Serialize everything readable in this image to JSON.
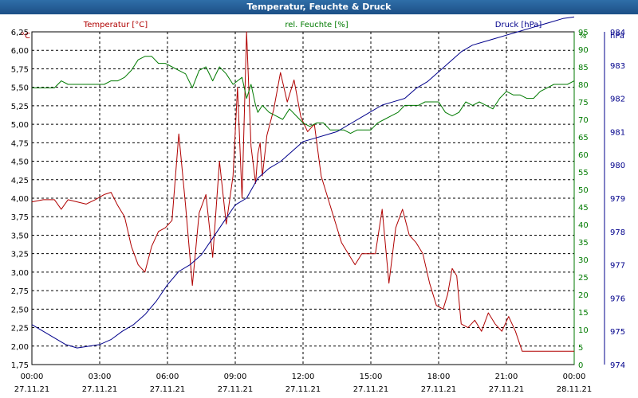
{
  "window": {
    "title": "Temperatur, Feuchte & Druck"
  },
  "chart_data": {
    "type": "line",
    "title": "Temperatur, Feuchte & Druck",
    "grid": true,
    "x_range": [
      "27.11.21 00:00",
      "28.11.21 00:00"
    ],
    "x_ticks": [
      {
        "time": "00:00",
        "date": "27.11.21"
      },
      {
        "time": "03:00",
        "date": "27.11.21"
      },
      {
        "time": "06:00",
        "date": "27.11.21"
      },
      {
        "time": "09:00",
        "date": "27.11.21"
      },
      {
        "time": "12:00",
        "date": "27.11.21"
      },
      {
        "time": "15:00",
        "date": "27.11.21"
      },
      {
        "time": "18:00",
        "date": "27.11.21"
      },
      {
        "time": "21:00",
        "date": "27.11.21"
      },
      {
        "time": "00:00",
        "date": "28.11.21"
      }
    ],
    "axes": {
      "temp": {
        "unit": "°C",
        "label": "Temperatur [°C]",
        "color": "#b00000",
        "min": 1.75,
        "max": 6.25,
        "ticks": [
          "1,75",
          "2,00",
          "2,25",
          "2,50",
          "2,75",
          "3,00",
          "3,25",
          "3,50",
          "3,75",
          "4,00",
          "4,25",
          "4,50",
          "4,75",
          "5,00",
          "5,25",
          "5,50",
          "5,75",
          "6,00",
          "6,25"
        ]
      },
      "humidity": {
        "unit": "%",
        "label": "rel. Feuchte [%]",
        "color": "#007a00",
        "min": 0,
        "max": 95,
        "ticks": [
          "0",
          "5",
          "10",
          "15",
          "20",
          "25",
          "30",
          "35",
          "40",
          "45",
          "50",
          "55",
          "60",
          "65",
          "70",
          "75",
          "80",
          "85",
          "90",
          "95"
        ]
      },
      "pressure": {
        "unit": "hPa",
        "label": "Druck [hPa]",
        "color": "#00008b",
        "min": 974,
        "max": 984,
        "ticks": [
          "974",
          "975",
          "976",
          "977",
          "978",
          "979",
          "980",
          "981",
          "982",
          "983",
          "984"
        ]
      }
    },
    "series": [
      {
        "name": "Temperatur [°C]",
        "axis": "temp",
        "color": "#b00000",
        "x": [
          0,
          0.5,
          1,
          1.3,
          1.6,
          2,
          2.4,
          2.8,
          3.2,
          3.5,
          3.8,
          4.1,
          4.4,
          4.7,
          5.0,
          5.3,
          5.6,
          5.9,
          6.2,
          6.5,
          6.8,
          7.1,
          7.4,
          7.7,
          8.0,
          8.3,
          8.6,
          8.9,
          9.1,
          9.3,
          9.5,
          9.7,
          9.9,
          10.0,
          10.1,
          10.2,
          10.4,
          10.7,
          11.0,
          11.3,
          11.6,
          11.9,
          12.2,
          12.5,
          12.8,
          13.1,
          13.4,
          13.7,
          14.0,
          14.3,
          14.6,
          14.9,
          15.2,
          15.5,
          15.8,
          16.1,
          16.4,
          16.7,
          17.0,
          17.3,
          17.6,
          17.9,
          18.2,
          18.4,
          18.6,
          18.8,
          19.0,
          19.3,
          19.6,
          19.9,
          20.2,
          20.5,
          20.8,
          21.1,
          21.4,
          21.7,
          22.0,
          22.3,
          22.6,
          22.9,
          23.2,
          23.5,
          23.8,
          24.0
        ],
        "y": [
          3.95,
          3.98,
          3.98,
          3.85,
          3.98,
          3.95,
          3.92,
          3.98,
          4.05,
          4.08,
          3.9,
          3.75,
          3.35,
          3.1,
          3.0,
          3.35,
          3.55,
          3.6,
          3.7,
          4.87,
          3.9,
          2.82,
          3.8,
          4.05,
          3.2,
          4.5,
          3.65,
          4.3,
          5.5,
          4.0,
          6.25,
          4.7,
          4.2,
          4.6,
          4.75,
          4.3,
          4.85,
          5.2,
          5.7,
          5.3,
          5.6,
          5.1,
          4.9,
          5.0,
          4.3,
          4.0,
          3.7,
          3.4,
          3.25,
          3.1,
          3.25,
          3.25,
          3.25,
          3.85,
          2.85,
          3.6,
          3.85,
          3.5,
          3.4,
          3.25,
          2.85,
          2.55,
          2.5,
          2.7,
          3.05,
          2.95,
          2.3,
          2.25,
          2.35,
          2.2,
          2.45,
          2.3,
          2.2,
          2.4,
          2.2,
          1.93,
          1.93,
          1.93,
          1.93,
          1.93,
          1.93,
          1.93,
          1.93,
          1.93
        ]
      },
      {
        "name": "rel. Feuchte [%]",
        "axis": "humidity",
        "color": "#007a00",
        "x": [
          0,
          0.5,
          1,
          1.3,
          1.6,
          2,
          2.4,
          2.8,
          3.2,
          3.5,
          3.8,
          4.1,
          4.4,
          4.7,
          5.0,
          5.3,
          5.6,
          5.9,
          6.2,
          6.5,
          6.8,
          7.1,
          7.4,
          7.7,
          8.0,
          8.3,
          8.6,
          8.9,
          9.1,
          9.3,
          9.5,
          9.7,
          9.9,
          10.0,
          10.2,
          10.5,
          10.8,
          11.1,
          11.4,
          11.7,
          12.0,
          12.3,
          12.6,
          12.9,
          13.2,
          13.5,
          13.8,
          14.1,
          14.4,
          14.7,
          15.0,
          15.3,
          15.6,
          15.9,
          16.2,
          16.5,
          16.8,
          17.1,
          17.4,
          17.7,
          18.0,
          18.3,
          18.6,
          18.9,
          19.2,
          19.5,
          19.8,
          20.1,
          20.4,
          20.7,
          21.0,
          21.3,
          21.6,
          21.9,
          22.2,
          22.5,
          22.8,
          23.1,
          23.4,
          23.7,
          24.0
        ],
        "y": [
          79,
          79,
          79,
          81,
          80,
          80,
          80,
          80,
          80,
          81,
          81,
          82,
          84,
          87,
          88,
          88,
          86,
          86,
          85,
          84,
          83,
          79,
          84,
          85,
          81,
          85,
          83,
          80,
          81,
          82,
          76,
          80,
          74,
          72,
          74,
          72,
          71,
          70,
          73,
          71,
          69,
          68,
          69,
          69,
          67,
          67,
          67,
          66,
          67,
          67,
          67,
          69,
          70,
          71,
          72,
          74,
          74,
          74,
          75,
          75,
          75,
          72,
          71,
          72,
          75,
          74,
          75,
          74,
          73,
          76,
          78,
          77,
          77,
          76,
          76,
          78,
          79,
          80,
          80,
          80,
          81
        ]
      },
      {
        "name": "Druck [hPa]",
        "axis": "pressure",
        "color": "#00008b",
        "x": [
          0,
          0.5,
          1,
          1.5,
          2,
          2.5,
          3,
          3.5,
          4,
          4.5,
          5,
          5.5,
          6,
          6.5,
          7,
          7.5,
          8,
          8.5,
          9,
          9.5,
          10,
          10.5,
          11,
          11.5,
          12,
          12.5,
          13,
          13.5,
          14,
          14.5,
          15,
          15.5,
          16,
          16.5,
          17,
          17.5,
          18,
          18.5,
          19,
          19.5,
          20,
          20.5,
          21,
          21.5,
          22,
          22.5,
          23,
          23.5,
          24
        ],
        "y": [
          975.2,
          975.0,
          974.8,
          974.6,
          974.5,
          974.55,
          974.6,
          974.75,
          975.0,
          975.2,
          975.5,
          975.9,
          976.4,
          976.8,
          977.0,
          977.3,
          977.8,
          978.3,
          978.8,
          979.0,
          979.6,
          979.9,
          980.1,
          980.4,
          980.7,
          980.8,
          980.9,
          981.0,
          981.2,
          981.4,
          981.6,
          981.8,
          981.9,
          982.0,
          982.3,
          982.5,
          982.8,
          983.1,
          983.4,
          983.6,
          983.7,
          983.8,
          983.9,
          984.0,
          984.1,
          984.2,
          984.3,
          984.4,
          984.45
        ]
      }
    ]
  }
}
